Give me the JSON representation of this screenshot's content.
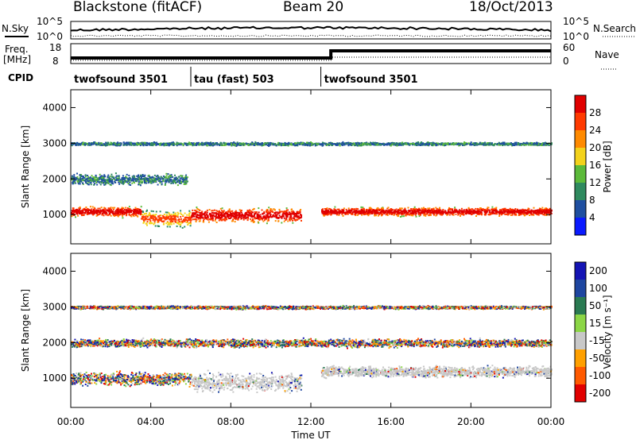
{
  "header": {
    "station": "Blackstone (fitACF)",
    "beam": "Beam 20",
    "date": "18/Oct/2013"
  },
  "top_panel": {
    "left_label": "N.Sky",
    "left_ticks": [
      "10^5",
      "10^0"
    ],
    "right_label": "N.Search",
    "right_ticks": [
      "10^5",
      "10^0"
    ],
    "freq_label": "Freq.",
    "freq_unit": "[MHz]",
    "freq_ticks": [
      "18",
      "8"
    ],
    "nave_label": "Nave",
    "nave_ticks": [
      "60",
      "0"
    ],
    "cpid_label": "CPID",
    "programs": [
      {
        "name": "twofsound 3501",
        "start_h": 0,
        "end_h": 6
      },
      {
        "name": "tau (fast) 503",
        "start_h": 6,
        "end_h": 12.5
      },
      {
        "name": "twofsound 3501",
        "start_h": 12.5,
        "end_h": 24
      }
    ]
  },
  "x_axis": {
    "label": "Time UT",
    "ticks": [
      "00:00",
      "04:00",
      "08:00",
      "12:00",
      "16:00",
      "20:00",
      "00:00"
    ],
    "range_h": [
      0,
      24
    ]
  },
  "y_axis": {
    "label": "Slant Range [km]",
    "ticks": [
      "1000",
      "2000",
      "3000",
      "4000"
    ],
    "range_km": [
      180,
      4500
    ]
  },
  "colors": {
    "power": [
      "#0a1aff",
      "#1f4fa0",
      "#2f8a5f",
      "#5cba3a",
      "#f3d21b",
      "#ff8a00",
      "#ff3a00",
      "#e00000"
    ],
    "velocity": [
      "#1414b4",
      "#1e46a0",
      "#2a7a52",
      "#8cd646",
      "#c8c8c8",
      "#ffa000",
      "#ff5a00",
      "#e10000"
    ]
  },
  "chart_data": [
    {
      "type": "heatmap",
      "title": "Power",
      "colorbar_label": "Power [dB]",
      "colorbar_ticks": [
        "4",
        "8",
        "12",
        "16",
        "20",
        "24",
        "28"
      ],
      "x": "Time UT (hours)",
      "y": "Slant Range [km]",
      "scatter_regions": [
        {
          "t": [
            0,
            3.5
          ],
          "center_km": 1100,
          "half_width_km": 180,
          "level": "high"
        },
        {
          "t": [
            3.5,
            6.0
          ],
          "center_km": 900,
          "half_width_km": 300,
          "level": "mid"
        },
        {
          "t": [
            6.0,
            11.5
          ],
          "center_km": 1000,
          "half_width_km": 250,
          "level": "high"
        },
        {
          "t": [
            12.5,
            24
          ],
          "center_km": 1100,
          "half_width_km": 150,
          "level": "high"
        },
        {
          "t": [
            0,
            5.8
          ],
          "center_km": 2000,
          "half_width_km": 200,
          "level": "low"
        },
        {
          "t": [
            0,
            24
          ],
          "center_km": 3000,
          "half_width_km": 60,
          "level": "low"
        }
      ]
    },
    {
      "type": "heatmap",
      "title": "Velocity",
      "colorbar_label": "Velocity [m s⁻¹]",
      "colorbar_ticks": [
        "200",
        "100",
        "50",
        "15",
        "-15",
        "-50",
        "-100",
        "-200"
      ],
      "x": "Time UT (hours)",
      "y": "Slant Range [km]",
      "scatter_regions": [
        {
          "t": [
            0,
            6.0
          ],
          "center_km": 1000,
          "half_width_km": 250,
          "level": "mixed"
        },
        {
          "t": [
            6.0,
            11.5
          ],
          "center_km": 900,
          "half_width_km": 350,
          "level": "near-zero"
        },
        {
          "t": [
            12.5,
            24
          ],
          "center_km": 1200,
          "half_width_km": 200,
          "level": "near-zero"
        },
        {
          "t": [
            0,
            24
          ],
          "center_km": 2000,
          "half_width_km": 150,
          "level": "mixed"
        },
        {
          "t": [
            0,
            24
          ],
          "center_km": 3000,
          "half_width_km": 60,
          "level": "mixed"
        }
      ]
    }
  ]
}
